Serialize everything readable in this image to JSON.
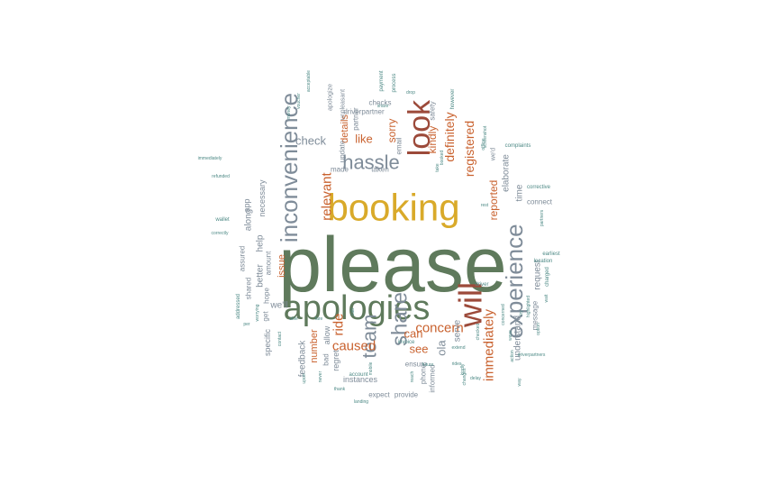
{
  "palette": {
    "green": "#5f7a5c",
    "gold": "#d9aa2a",
    "slate": "#7f8c99",
    "orange": "#c9622f",
    "brown": "#9c4a3a",
    "teal": "#4e8a86"
  },
  "words": [
    {
      "text": "please",
      "color": "green"
    },
    {
      "text": "booking",
      "color": "gold"
    },
    {
      "text": "apologies",
      "color": "green"
    },
    {
      "text": "inconvenience",
      "color": "slate"
    },
    {
      "text": "look",
      "color": "brown"
    },
    {
      "text": "will",
      "color": "brown"
    },
    {
      "text": "experience",
      "color": "slate"
    },
    {
      "text": "share",
      "color": "slate"
    },
    {
      "text": "team",
      "color": "slate"
    },
    {
      "text": "hassle",
      "color": "slate"
    },
    {
      "text": "concern",
      "color": "orange"
    },
    {
      "text": "caused",
      "color": "orange"
    },
    {
      "text": "immediately",
      "color": "orange"
    },
    {
      "text": "registered",
      "color": "orange"
    },
    {
      "text": "relevant",
      "color": "orange"
    },
    {
      "text": "definitely",
      "color": "orange"
    },
    {
      "text": "ride",
      "color": "orange"
    },
    {
      "text": "can",
      "color": "orange"
    },
    {
      "text": "see",
      "color": "orange"
    },
    {
      "text": "ola",
      "color": "slate"
    },
    {
      "text": "check",
      "color": "slate"
    },
    {
      "text": "like",
      "color": "orange"
    },
    {
      "text": "kindly",
      "color": "orange"
    },
    {
      "text": "sorry",
      "color": "orange"
    },
    {
      "text": "reported",
      "color": "orange"
    },
    {
      "text": "issue",
      "color": "orange"
    },
    {
      "text": "number",
      "color": "orange"
    },
    {
      "text": "details",
      "color": "orange"
    },
    {
      "text": "request",
      "color": "slate"
    },
    {
      "text": "understand",
      "color": "slate"
    },
    {
      "text": "elaborate",
      "color": "slate"
    },
    {
      "text": "time",
      "color": "slate"
    },
    {
      "text": "serve",
      "color": "slate"
    },
    {
      "text": "feedback",
      "color": "slate"
    },
    {
      "text": "we'll",
      "color": "slate"
    },
    {
      "text": "regret",
      "color": "slate"
    },
    {
      "text": "allow",
      "color": "slate"
    },
    {
      "text": "bad",
      "color": "slate"
    },
    {
      "text": "better",
      "color": "slate"
    },
    {
      "text": "help",
      "color": "slate"
    },
    {
      "text": "along",
      "color": "slate"
    },
    {
      "text": "necessary",
      "color": "slate"
    },
    {
      "text": "app",
      "color": "slate"
    },
    {
      "text": "specific",
      "color": "slate"
    },
    {
      "text": "get",
      "color": "slate"
    },
    {
      "text": "hope",
      "color": "slate"
    },
    {
      "text": "shared",
      "color": "slate"
    },
    {
      "text": "assured",
      "color": "slate"
    },
    {
      "text": "amount",
      "color": "slate"
    },
    {
      "text": "instances",
      "color": "slate"
    },
    {
      "text": "expect",
      "color": "slate"
    },
    {
      "text": "provide",
      "color": "slate"
    },
    {
      "text": "phone",
      "color": "slate"
    },
    {
      "text": "ensure",
      "color": "slate"
    },
    {
      "text": "informed",
      "color": "slate"
    },
    {
      "text": "message",
      "color": "slate"
    },
    {
      "text": "connect",
      "color": "slate"
    },
    {
      "text": "taken",
      "color": "slate"
    },
    {
      "text": "made",
      "color": "slate"
    },
    {
      "text": "update",
      "color": "slate"
    },
    {
      "text": "email",
      "color": "slate"
    },
    {
      "text": "partner",
      "color": "slate"
    },
    {
      "text": "driverpartner",
      "color": "slate"
    },
    {
      "text": "checks",
      "color": "slate"
    },
    {
      "text": "safety",
      "color": "slate"
    },
    {
      "text": "apologize",
      "color": "slate"
    },
    {
      "text": "unpleasant",
      "color": "slate"
    },
    {
      "text": "complaints",
      "color": "teal"
    },
    {
      "text": "we'd",
      "color": "slate"
    },
    {
      "text": "corrective",
      "color": "teal"
    },
    {
      "text": "earliest",
      "color": "teal"
    },
    {
      "text": "location",
      "color": "teal"
    },
    {
      "text": "charged",
      "color": "teal"
    },
    {
      "text": "driver",
      "color": "teal"
    },
    {
      "text": "invoice",
      "color": "teal"
    },
    {
      "text": "account",
      "color": "teal"
    },
    {
      "text": "refunded",
      "color": "teal"
    },
    {
      "text": "wallet",
      "color": "teal"
    },
    {
      "text": "addressed",
      "color": "teal"
    },
    {
      "text": "payment",
      "color": "teal"
    },
    {
      "text": "process",
      "color": "teal"
    },
    {
      "text": "however",
      "color": "teal"
    },
    {
      "text": "screenshot",
      "color": "teal"
    },
    {
      "text": "thank",
      "color": "teal"
    },
    {
      "text": "delay",
      "color": "teal"
    },
    {
      "text": "rides",
      "color": "teal"
    },
    {
      "text": "highlighted",
      "color": "teal"
    },
    {
      "text": "correctly",
      "color": "teal"
    },
    {
      "text": "immediately",
      "color": "teal"
    },
    {
      "text": "voucher",
      "color": "teal"
    },
    {
      "text": "money",
      "color": "teal"
    },
    {
      "text": "acceptable",
      "color": "teal"
    },
    {
      "text": "worrying",
      "color": "teal"
    },
    {
      "text": "contact",
      "color": "teal"
    },
    {
      "text": "partners",
      "color": "teal"
    },
    {
      "text": "way",
      "color": "teal"
    },
    {
      "text": "rest",
      "color": "teal"
    },
    {
      "text": "wait",
      "color": "teal"
    },
    {
      "text": "drop",
      "color": "teal"
    },
    {
      "text": "share",
      "color": "teal"
    },
    {
      "text": "able",
      "color": "teal"
    },
    {
      "text": "fare",
      "color": "teal"
    },
    {
      "text": "never",
      "color": "teal"
    },
    {
      "text": "cab",
      "color": "teal"
    },
    {
      "text": "concerned",
      "color": "teal"
    },
    {
      "text": "driverpartners",
      "color": "teal"
    },
    {
      "text": "extend",
      "color": "teal"
    },
    {
      "text": "upon",
      "color": "teal"
    },
    {
      "text": "changes",
      "color": "teal"
    },
    {
      "text": "checked",
      "color": "teal"
    },
    {
      "text": "wave",
      "color": "teal"
    },
    {
      "text": "try",
      "color": "teal"
    },
    {
      "text": "future",
      "color": "teal"
    },
    {
      "text": "landing",
      "color": "teal"
    },
    {
      "text": "action",
      "color": "teal"
    },
    {
      "text": "option",
      "color": "teal"
    },
    {
      "text": "kindly",
      "color": "teal"
    },
    {
      "text": "mobile",
      "color": "teal"
    },
    {
      "text": "reach",
      "color": "teal"
    },
    {
      "text": "per",
      "color": "teal"
    },
    {
      "text": "take",
      "color": "teal"
    },
    {
      "text": "offline",
      "color": "teal"
    },
    {
      "text": "booked",
      "color": "teal"
    }
  ]
}
